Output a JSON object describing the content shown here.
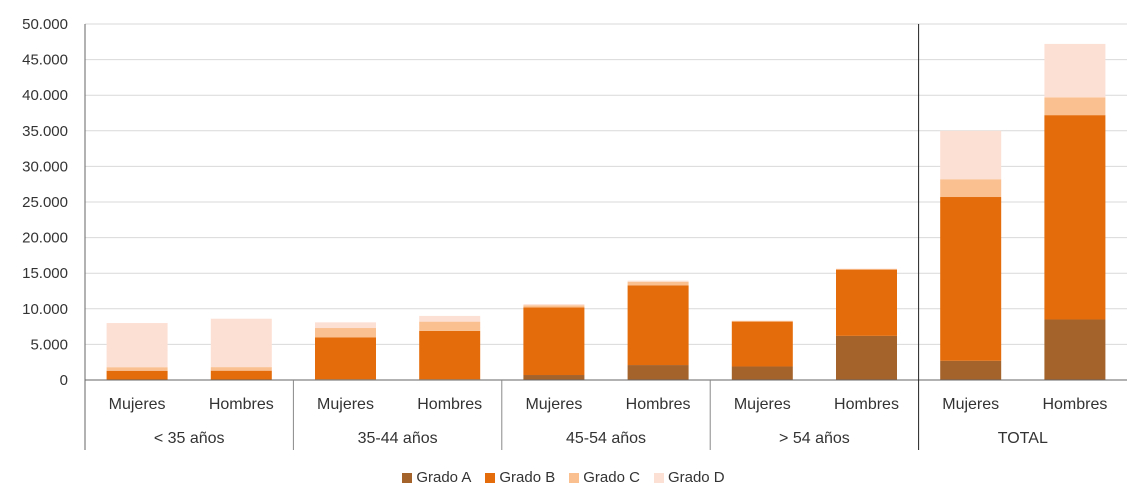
{
  "chart_data": {
    "type": "bar",
    "stacked": true,
    "ylim": [
      0,
      50000
    ],
    "yticks": [
      "0",
      "5.000",
      "10.000",
      "15.000",
      "20.000",
      "25.000",
      "30.000",
      "35.000",
      "40.000",
      "45.000",
      "50.000"
    ],
    "ytick_values": [
      0,
      5000,
      10000,
      15000,
      20000,
      25000,
      30000,
      35000,
      40000,
      45000,
      50000
    ],
    "grid": true,
    "legend_position": "bottom",
    "groups": [
      {
        "label": "< 35 años",
        "categories": [
          "Mujeres",
          "Hombres"
        ]
      },
      {
        "label": "35-44 años",
        "categories": [
          "Mujeres",
          "Hombres"
        ]
      },
      {
        "label": "45-54 años",
        "categories": [
          "Mujeres",
          "Hombres"
        ]
      },
      {
        "label": "> 54 años",
        "categories": [
          "Mujeres",
          "Hombres"
        ]
      },
      {
        "label": "TOTAL",
        "categories": [
          "Mujeres",
          "Hombres"
        ]
      }
    ],
    "series": [
      {
        "name": "Grado A",
        "color": "#a5632c",
        "values": [
          50,
          60,
          100,
          100,
          700,
          2100,
          1900,
          6200,
          2700,
          8500
        ]
      },
      {
        "name": "Grado B",
        "color": "#e46c0a",
        "values": [
          1250,
          1250,
          5900,
          6800,
          9500,
          11200,
          6300,
          9300,
          23000,
          28700
        ]
      },
      {
        "name": "Grado C",
        "color": "#fac090",
        "values": [
          500,
          500,
          1300,
          1300,
          300,
          500,
          100,
          100,
          2500,
          2500
        ]
      },
      {
        "name": "Grado D",
        "color": "#fde0d4",
        "values": [
          6200,
          6800,
          800,
          800,
          150,
          150,
          50,
          50,
          6800,
          7500
        ]
      }
    ]
  }
}
